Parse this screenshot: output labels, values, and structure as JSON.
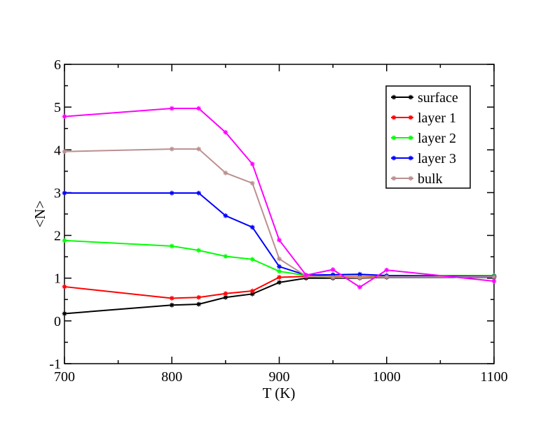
{
  "chart_data": {
    "type": "line",
    "title": "",
    "xlabel": "T (K)",
    "ylabel": "<N>",
    "xlim": [
      700,
      1100
    ],
    "ylim": [
      -1,
      6
    ],
    "xticks": [
      700,
      800,
      900,
      1000,
      1100
    ],
    "yticks": [
      -1,
      0,
      1,
      2,
      3,
      4,
      5,
      6
    ],
    "grid": false,
    "legend": "top-right",
    "x": [
      700,
      800,
      825,
      850,
      875,
      900,
      925,
      950,
      975,
      1000,
      1100
    ],
    "series": [
      {
        "name": "surface",
        "color": "#000000",
        "values": [
          0.17,
          0.37,
          0.39,
          0.55,
          0.63,
          0.9,
          1.0,
          1.0,
          1.0,
          1.02,
          1.02
        ]
      },
      {
        "name": "layer 1",
        "color": "#ff0000",
        "values": [
          0.8,
          0.53,
          0.55,
          0.64,
          0.7,
          1.02,
          1.04,
          1.03,
          1.02,
          1.04,
          1.05
        ]
      },
      {
        "name": "layer 2",
        "color": "#00ff00",
        "values": [
          1.88,
          1.75,
          1.65,
          1.51,
          1.44,
          1.16,
          1.06,
          1.07,
          1.07,
          1.06,
          1.06
        ]
      },
      {
        "name": "layer 3",
        "color": "#0000ff",
        "values": [
          2.99,
          2.99,
          2.99,
          2.46,
          2.19,
          1.27,
          1.07,
          1.08,
          1.09,
          1.06,
          1.04
        ]
      },
      {
        "name": "bulk",
        "color": "#bc8f8f",
        "values": [
          3.96,
          4.02,
          4.02,
          3.46,
          3.22,
          1.45,
          1.05,
          1.02,
          1.01,
          1.03,
          1.03
        ]
      },
      {
        "name": "",
        "color": "#ff00ff",
        "values": [
          4.78,
          4.97,
          4.97,
          4.41,
          3.67,
          1.89,
          1.07,
          1.2,
          0.79,
          1.19,
          0.93
        ]
      }
    ]
  }
}
